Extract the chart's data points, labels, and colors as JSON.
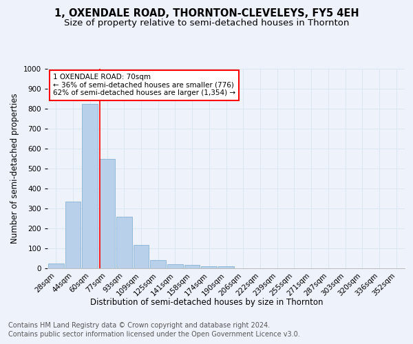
{
  "title": "1, OXENDALE ROAD, THORNTON-CLEVELEYS, FY5 4EH",
  "subtitle": "Size of property relative to semi-detached houses in Thornton",
  "xlabel": "Distribution of semi-detached houses by size in Thornton",
  "ylabel": "Number of semi-detached properties",
  "categories": [
    "28sqm",
    "44sqm",
    "60sqm",
    "77sqm",
    "93sqm",
    "109sqm",
    "125sqm",
    "141sqm",
    "158sqm",
    "174sqm",
    "190sqm",
    "206sqm",
    "222sqm",
    "239sqm",
    "255sqm",
    "271sqm",
    "287sqm",
    "303sqm",
    "320sqm",
    "336sqm",
    "352sqm"
  ],
  "values": [
    25,
    333,
    825,
    550,
    258,
    118,
    43,
    22,
    17,
    12,
    9,
    0,
    0,
    0,
    0,
    0,
    0,
    0,
    0,
    0,
    0
  ],
  "bar_color": "#b8d0ea",
  "bar_edge_color": "#7aaad0",
  "grid_color": "#d8e4f0",
  "annotation_box_text": [
    "1 OXENDALE ROAD: 70sqm",
    "← 36% of semi-detached houses are smaller (776)",
    "62% of semi-detached houses are larger (1,354) →"
  ],
  "annotation_box_color": "white",
  "annotation_box_edge_color": "red",
  "vline_color": "red",
  "ylim": [
    0,
    1000
  ],
  "yticks": [
    0,
    100,
    200,
    300,
    400,
    500,
    600,
    700,
    800,
    900,
    1000
  ],
  "footer_line1": "Contains HM Land Registry data © Crown copyright and database right 2024.",
  "footer_line2": "Contains public sector information licensed under the Open Government Licence v3.0.",
  "title_fontsize": 10.5,
  "subtitle_fontsize": 9.5,
  "axis_label_fontsize": 8.5,
  "tick_fontsize": 7.5,
  "ann_fontsize": 7.5,
  "footer_fontsize": 7,
  "background_color": "#eef2fb"
}
